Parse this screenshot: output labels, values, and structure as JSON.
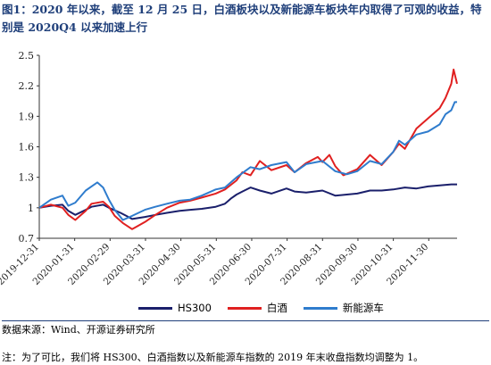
{
  "title": "图1：2020 年以来，截至 12 月 25 日，白酒板块以及新能源车板块年内取得了可观的收益，特别是 2020Q4 以来加速上行",
  "source": "数据来源：Wind、开源证券研究所",
  "note": "注：为了可比，我们将 HS300、白酒指数以及新能源车指数的 2019 年末收盘指数均调整为 1。",
  "chart_data": {
    "type": "line",
    "x_ticks": [
      "2019-12-31",
      "2020-01-31",
      "2020-02-29",
      "2020-03-31",
      "2020-04-30",
      "2020-05-31",
      "2020-06-30",
      "2020-07-31",
      "2020-08-31",
      "2020-09-30",
      "2020-10-31",
      "2020-11-30"
    ],
    "y_ticks": [
      "0.7",
      "1",
      "1.3",
      "1.6",
      "1.9",
      "2.2",
      "2.5"
    ],
    "ylim": [
      0.7,
      2.5
    ],
    "x_range_days": [
      0,
      360
    ],
    "series": [
      {
        "name": "HS300",
        "color": "#1a1f6b",
        "x": [
          0,
          10,
          20,
          25,
          31,
          40,
          45,
          55,
          60,
          70,
          75,
          80,
          91,
          100,
          110,
          121,
          130,
          140,
          152,
          160,
          165,
          170,
          175,
          182,
          190,
          200,
          213,
          220,
          230,
          244,
          255,
          265,
          274,
          285,
          295,
          305,
          315,
          325,
          335,
          345,
          355,
          360
        ],
        "y": [
          1.0,
          1.02,
          1.03,
          0.97,
          0.93,
          0.98,
          1.01,
          1.03,
          1.0,
          0.95,
          0.92,
          0.89,
          0.91,
          0.93,
          0.95,
          0.97,
          0.98,
          0.99,
          1.01,
          1.04,
          1.09,
          1.13,
          1.16,
          1.2,
          1.17,
          1.14,
          1.19,
          1.16,
          1.15,
          1.17,
          1.12,
          1.13,
          1.14,
          1.17,
          1.17,
          1.18,
          1.2,
          1.19,
          1.21,
          1.22,
          1.23,
          1.23
        ]
      },
      {
        "name": "白酒",
        "color": "#e02020",
        "x": [
          0,
          10,
          20,
          25,
          31,
          40,
          45,
          55,
          60,
          65,
          72,
          80,
          91,
          100,
          110,
          121,
          130,
          140,
          152,
          160,
          170,
          175,
          182,
          190,
          200,
          213,
          220,
          230,
          240,
          244,
          250,
          255,
          262,
          274,
          285,
          295,
          305,
          310,
          315,
          325,
          335,
          345,
          350,
          355,
          357,
          360
        ],
        "y": [
          1.0,
          1.03,
          1.0,
          0.93,
          0.88,
          0.97,
          1.04,
          1.06,
          1.01,
          0.92,
          0.85,
          0.79,
          0.86,
          0.93,
          1.0,
          1.05,
          1.07,
          1.1,
          1.14,
          1.18,
          1.27,
          1.35,
          1.32,
          1.46,
          1.37,
          1.42,
          1.35,
          1.44,
          1.5,
          1.45,
          1.52,
          1.41,
          1.32,
          1.38,
          1.52,
          1.42,
          1.55,
          1.63,
          1.58,
          1.78,
          1.88,
          1.98,
          2.08,
          2.22,
          2.36,
          2.22
        ]
      },
      {
        "name": "新能源车",
        "color": "#2f7ccd",
        "x": [
          0,
          10,
          20,
          25,
          31,
          40,
          45,
          50,
          55,
          60,
          65,
          72,
          80,
          91,
          100,
          110,
          121,
          130,
          140,
          152,
          160,
          170,
          182,
          190,
          200,
          213,
          220,
          230,
          244,
          255,
          265,
          274,
          285,
          295,
          305,
          310,
          315,
          325,
          335,
          345,
          350,
          355,
          358,
          360
        ],
        "y": [
          1.0,
          1.08,
          1.12,
          1.02,
          1.05,
          1.17,
          1.21,
          1.25,
          1.2,
          1.08,
          0.98,
          0.88,
          0.92,
          0.98,
          1.01,
          1.04,
          1.07,
          1.08,
          1.12,
          1.18,
          1.2,
          1.3,
          1.4,
          1.38,
          1.42,
          1.45,
          1.35,
          1.43,
          1.46,
          1.36,
          1.33,
          1.36,
          1.46,
          1.43,
          1.55,
          1.66,
          1.62,
          1.72,
          1.75,
          1.82,
          1.92,
          1.96,
          2.04,
          2.04
        ]
      }
    ]
  }
}
